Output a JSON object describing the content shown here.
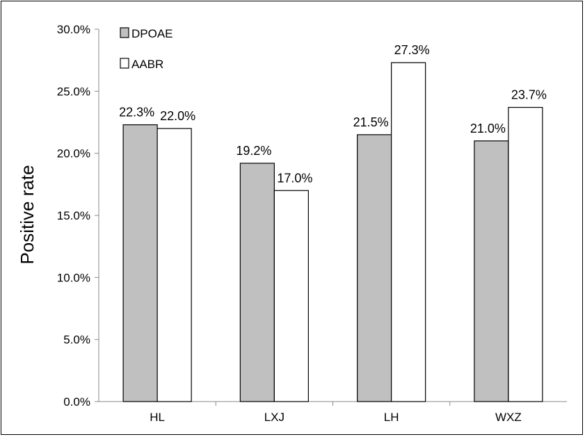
{
  "chart_data": {
    "type": "bar",
    "ylabel": "Positive rate",
    "xlabel": "",
    "categories": [
      "HL",
      "LXJ",
      "LH",
      "WXZ"
    ],
    "ylim": [
      0,
      30
    ],
    "yticks": [
      "0.0%",
      "5.0%",
      "10.0%",
      "15.0%",
      "20.0%",
      "25.0%",
      "30.0%"
    ],
    "ytick_values": [
      0,
      5,
      10,
      15,
      20,
      25,
      30
    ],
    "legend_position": "top-left",
    "grid": false,
    "series": [
      {
        "name": "DPOAE",
        "color": "#c0c0c0",
        "values": [
          22.3,
          19.2,
          21.5,
          21.0
        ],
        "labels": [
          "22.3%",
          "19.2%",
          "21.5%",
          "21.0%"
        ]
      },
      {
        "name": "AABR",
        "color": "#ffffff",
        "values": [
          22.0,
          17.0,
          27.3,
          23.7
        ],
        "labels": [
          "22.0%",
          "17.0%",
          "27.3%",
          "23.7%"
        ]
      }
    ]
  }
}
